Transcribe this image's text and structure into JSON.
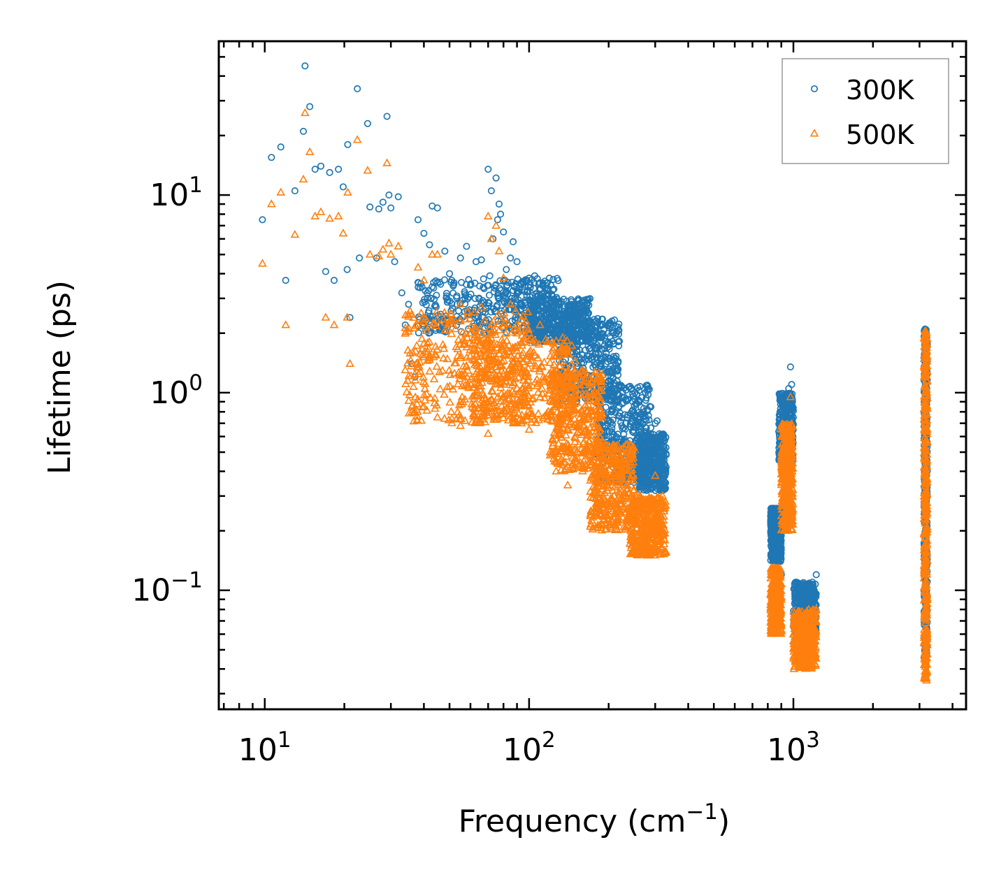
{
  "chart_data": {
    "type": "scatter",
    "title": "",
    "xlabel": {
      "base": "Frequency (cm",
      "exp": "−1",
      "close": ")"
    },
    "ylabel": "Lifetime (ps)",
    "xscale": "log",
    "yscale": "log",
    "xlim": [
      6.7,
      4500
    ],
    "ylim": [
      0.025,
      60
    ],
    "grid": false,
    "legend_position": "top-right",
    "x_ticks": [
      {
        "value": 10,
        "base": "10",
        "exp": "1"
      },
      {
        "value": 100,
        "base": "10",
        "exp": "2"
      },
      {
        "value": 1000,
        "base": "10",
        "exp": "3"
      }
    ],
    "y_ticks": [
      {
        "value": 10,
        "base": "10",
        "exp": "1"
      },
      {
        "value": 1,
        "base": "10",
        "exp": "0"
      },
      {
        "value": 0.1,
        "base": "10",
        "exp": "−1"
      }
    ],
    "series": [
      {
        "name": "300K",
        "color": "#1f77b4",
        "marker": "circle",
        "points": [
          [
            9.8,
            7.5
          ],
          [
            10.6,
            15.5
          ],
          [
            11.5,
            17.5
          ],
          [
            12.0,
            3.7
          ],
          [
            13.0,
            10.5
          ],
          [
            14.0,
            21.0
          ],
          [
            14.2,
            45.0
          ],
          [
            14.8,
            28.0
          ],
          [
            15.5,
            13.5
          ],
          [
            16.3,
            14.0
          ],
          [
            17.0,
            4.1
          ],
          [
            17.6,
            13.0
          ],
          [
            18.3,
            3.7
          ],
          [
            19.0,
            13.5
          ],
          [
            19.8,
            11.0
          ],
          [
            20.5,
            4.2
          ],
          [
            20.6,
            18.0
          ],
          [
            21.0,
            2.4
          ],
          [
            22.4,
            34.5
          ],
          [
            22.8,
            4.8
          ],
          [
            24.5,
            23.0
          ],
          [
            25.0,
            8.7
          ],
          [
            26.5,
            4.8
          ],
          [
            27.0,
            8.5
          ],
          [
            28.0,
            9.2
          ],
          [
            29.0,
            25.0
          ],
          [
            29.5,
            10.0
          ],
          [
            30.0,
            8.6
          ],
          [
            31.0,
            4.6
          ],
          [
            32.0,
            9.8
          ],
          [
            33.0,
            3.2
          ],
          [
            34.0,
            2.2
          ],
          [
            35.0,
            2.8
          ],
          [
            36.0,
            1.4
          ],
          [
            37.0,
            1.2
          ],
          [
            38.0,
            7.5
          ],
          [
            40.0,
            6.4
          ],
          [
            42.0,
            5.6
          ],
          [
            43.0,
            8.8
          ],
          [
            45.0,
            8.6
          ],
          [
            48.0,
            5.2
          ],
          [
            50.0,
            4.0
          ],
          [
            52.0,
            3.6
          ],
          [
            55.0,
            4.8
          ],
          [
            58.0,
            5.5
          ],
          [
            60.0,
            3.5
          ],
          [
            63.0,
            4.6
          ],
          [
            66.0,
            4.7
          ],
          [
            70.0,
            13.5
          ],
          [
            71.0,
            3.9
          ],
          [
            72.0,
            10.5
          ],
          [
            73.0,
            6.0
          ],
          [
            75.0,
            12.2
          ],
          [
            76.0,
            7.5
          ],
          [
            77.0,
            9.0
          ],
          [
            78.0,
            8.0
          ],
          [
            80.0,
            6.5
          ],
          [
            82.0,
            4.2
          ],
          [
            85.0,
            4.8
          ],
          [
            87.0,
            5.8
          ],
          [
            90.0,
            4.6
          ],
          [
            95.0,
            3.6
          ],
          [
            100.0,
            3.8
          ],
          [
            105.0,
            3.9
          ],
          [
            110.0,
            3.6
          ],
          [
            130.0,
            2.9
          ],
          [
            150.0,
            2.5
          ],
          [
            170.0,
            2.0
          ],
          [
            180.0,
            1.5
          ],
          [
            190.0,
            1.3
          ],
          [
            200.0,
            1.0
          ],
          [
            215.0,
            0.9
          ],
          [
            235.0,
            0.75
          ],
          [
            255.0,
            0.57
          ],
          [
            280.0,
            0.5
          ],
          [
            300.0,
            0.7
          ],
          [
            305.0,
            0.72
          ],
          [
            310.0,
            0.58
          ],
          [
            320.0,
            0.45
          ],
          [
            330.0,
            0.42
          ],
          [
            840.0,
            0.26
          ],
          [
            870.0,
            0.18
          ],
          [
            900.0,
            0.12
          ],
          [
            920.0,
            0.6
          ],
          [
            940.0,
            0.8
          ],
          [
            960.0,
            1.05
          ],
          [
            975.0,
            1.35
          ],
          [
            985.0,
            1.1
          ],
          [
            995.0,
            0.6
          ],
          [
            1005.0,
            0.065
          ],
          [
            1050.0,
            0.08
          ],
          [
            1100.0,
            0.1
          ],
          [
            1180.0,
            0.11
          ],
          [
            1220.0,
            0.12
          ],
          [
            3150.0,
            2.1
          ],
          [
            3160.0,
            1.5
          ],
          [
            3170.0,
            0.5
          ],
          [
            3180.0,
            0.15
          ],
          [
            3190.0,
            0.08
          ]
        ],
        "bands": [
          {
            "x": [
              38,
              130
            ],
            "y": [
              2.0,
              3.8
            ]
          },
          {
            "x": [
              100,
              170
            ],
            "y": [
              1.8,
              3.0
            ]
          },
          {
            "x": [
              130,
              220
            ],
            "y": [
              0.9,
              2.4
            ]
          },
          {
            "x": [
              180,
              290
            ],
            "y": [
              0.35,
              1.1
            ]
          },
          {
            "x": [
              260,
              330
            ],
            "y": [
              0.32,
              0.62
            ]
          },
          {
            "x": [
              820,
              900
            ],
            "y": [
              0.14,
              0.26
            ]
          },
          {
            "x": [
              880,
              1000
            ],
            "y": [
              0.45,
              1.0
            ]
          },
          {
            "x": [
              1000,
              1220
            ],
            "y": [
              0.06,
              0.11
            ]
          },
          {
            "x": [
              3120,
              3210
            ],
            "y": [
              0.045,
              2.1
            ]
          }
        ]
      },
      {
        "name": "500K",
        "color": "#ff7f0e",
        "marker": "triangle",
        "points": [
          [
            9.8,
            4.5
          ],
          [
            10.6,
            9.0
          ],
          [
            11.5,
            10.3
          ],
          [
            12.0,
            2.2
          ],
          [
            13.0,
            6.3
          ],
          [
            14.0,
            12.0
          ],
          [
            14.2,
            26.0
          ],
          [
            14.8,
            16.5
          ],
          [
            15.5,
            7.8
          ],
          [
            16.3,
            8.2
          ],
          [
            17.0,
            2.4
          ],
          [
            17.6,
            7.6
          ],
          [
            18.3,
            2.2
          ],
          [
            19.0,
            7.8
          ],
          [
            19.8,
            6.4
          ],
          [
            20.5,
            2.4
          ],
          [
            20.6,
            10.3
          ],
          [
            21.0,
            1.4
          ],
          [
            22.4,
            19.0
          ],
          [
            24.5,
            13.3
          ],
          [
            25.0,
            5.0
          ],
          [
            27.0,
            4.9
          ],
          [
            28.0,
            5.3
          ],
          [
            29.0,
            14.5
          ],
          [
            29.5,
            5.7
          ],
          [
            30.0,
            5.0
          ],
          [
            32.0,
            5.5
          ],
          [
            34.0,
            1.3
          ],
          [
            36.0,
            0.85
          ],
          [
            38.0,
            4.3
          ],
          [
            40.0,
            3.7
          ],
          [
            43.0,
            5.0
          ],
          [
            45.0,
            5.0
          ],
          [
            50.0,
            2.3
          ],
          [
            55.0,
            2.8
          ],
          [
            60.0,
            2.0
          ],
          [
            66.0,
            2.7
          ],
          [
            70.0,
            7.8
          ],
          [
            72.0,
            6.0
          ],
          [
            75.0,
            7.0
          ],
          [
            77.0,
            5.2
          ],
          [
            80.0,
            3.8
          ],
          [
            85.0,
            2.8
          ],
          [
            90.0,
            2.2
          ],
          [
            100.0,
            2.0
          ],
          [
            110.0,
            2.2
          ],
          [
            130.0,
            1.6
          ],
          [
            150.0,
            1.2
          ],
          [
            180.0,
            0.7
          ],
          [
            200.0,
            0.5
          ],
          [
            235.0,
            0.34
          ],
          [
            255.0,
            0.28
          ],
          [
            280.0,
            0.22
          ],
          [
            300.0,
            0.38
          ],
          [
            320.0,
            0.3
          ],
          [
            45.0,
            0.75
          ],
          [
            55.0,
            0.68
          ],
          [
            70.0,
            0.62
          ],
          [
            100.0,
            0.65
          ],
          [
            120.0,
            0.5
          ],
          [
            140.0,
            0.34
          ],
          [
            840.0,
            0.13
          ],
          [
            870.0,
            0.1
          ],
          [
            920.0,
            0.33
          ],
          [
            950.0,
            0.5
          ],
          [
            975.0,
            0.95
          ],
          [
            990.0,
            0.4
          ],
          [
            1005.0,
            0.04
          ],
          [
            1050.0,
            0.05
          ],
          [
            1100.0,
            0.055
          ],
          [
            1200.0,
            0.075
          ],
          [
            1220.0,
            0.08
          ],
          [
            3150.0,
            2.05
          ],
          [
            3160.0,
            1.0
          ],
          [
            3170.0,
            0.3
          ],
          [
            3180.0,
            0.08
          ],
          [
            3190.0,
            0.035
          ]
        ],
        "bands": [
          {
            "x": [
              34,
              100
            ],
            "y": [
              0.7,
              2.6
            ]
          },
          {
            "x": [
              60,
              150
            ],
            "y": [
              0.7,
              1.9
            ]
          },
          {
            "x": [
              120,
              190
            ],
            "y": [
              0.4,
              1.3
            ]
          },
          {
            "x": [
              170,
              250
            ],
            "y": [
              0.2,
              0.55
            ]
          },
          {
            "x": [
              240,
              330
            ],
            "y": [
              0.15,
              0.3
            ]
          },
          {
            "x": [
              820,
              900
            ],
            "y": [
              0.06,
              0.13
            ]
          },
          {
            "x": [
              900,
              995
            ],
            "y": [
              0.2,
              0.7
            ]
          },
          {
            "x": [
              1000,
              1220
            ],
            "y": [
              0.04,
              0.08
            ]
          },
          {
            "x": [
              3120,
              3210
            ],
            "y": [
              0.035,
              2.05
            ]
          }
        ]
      }
    ]
  }
}
